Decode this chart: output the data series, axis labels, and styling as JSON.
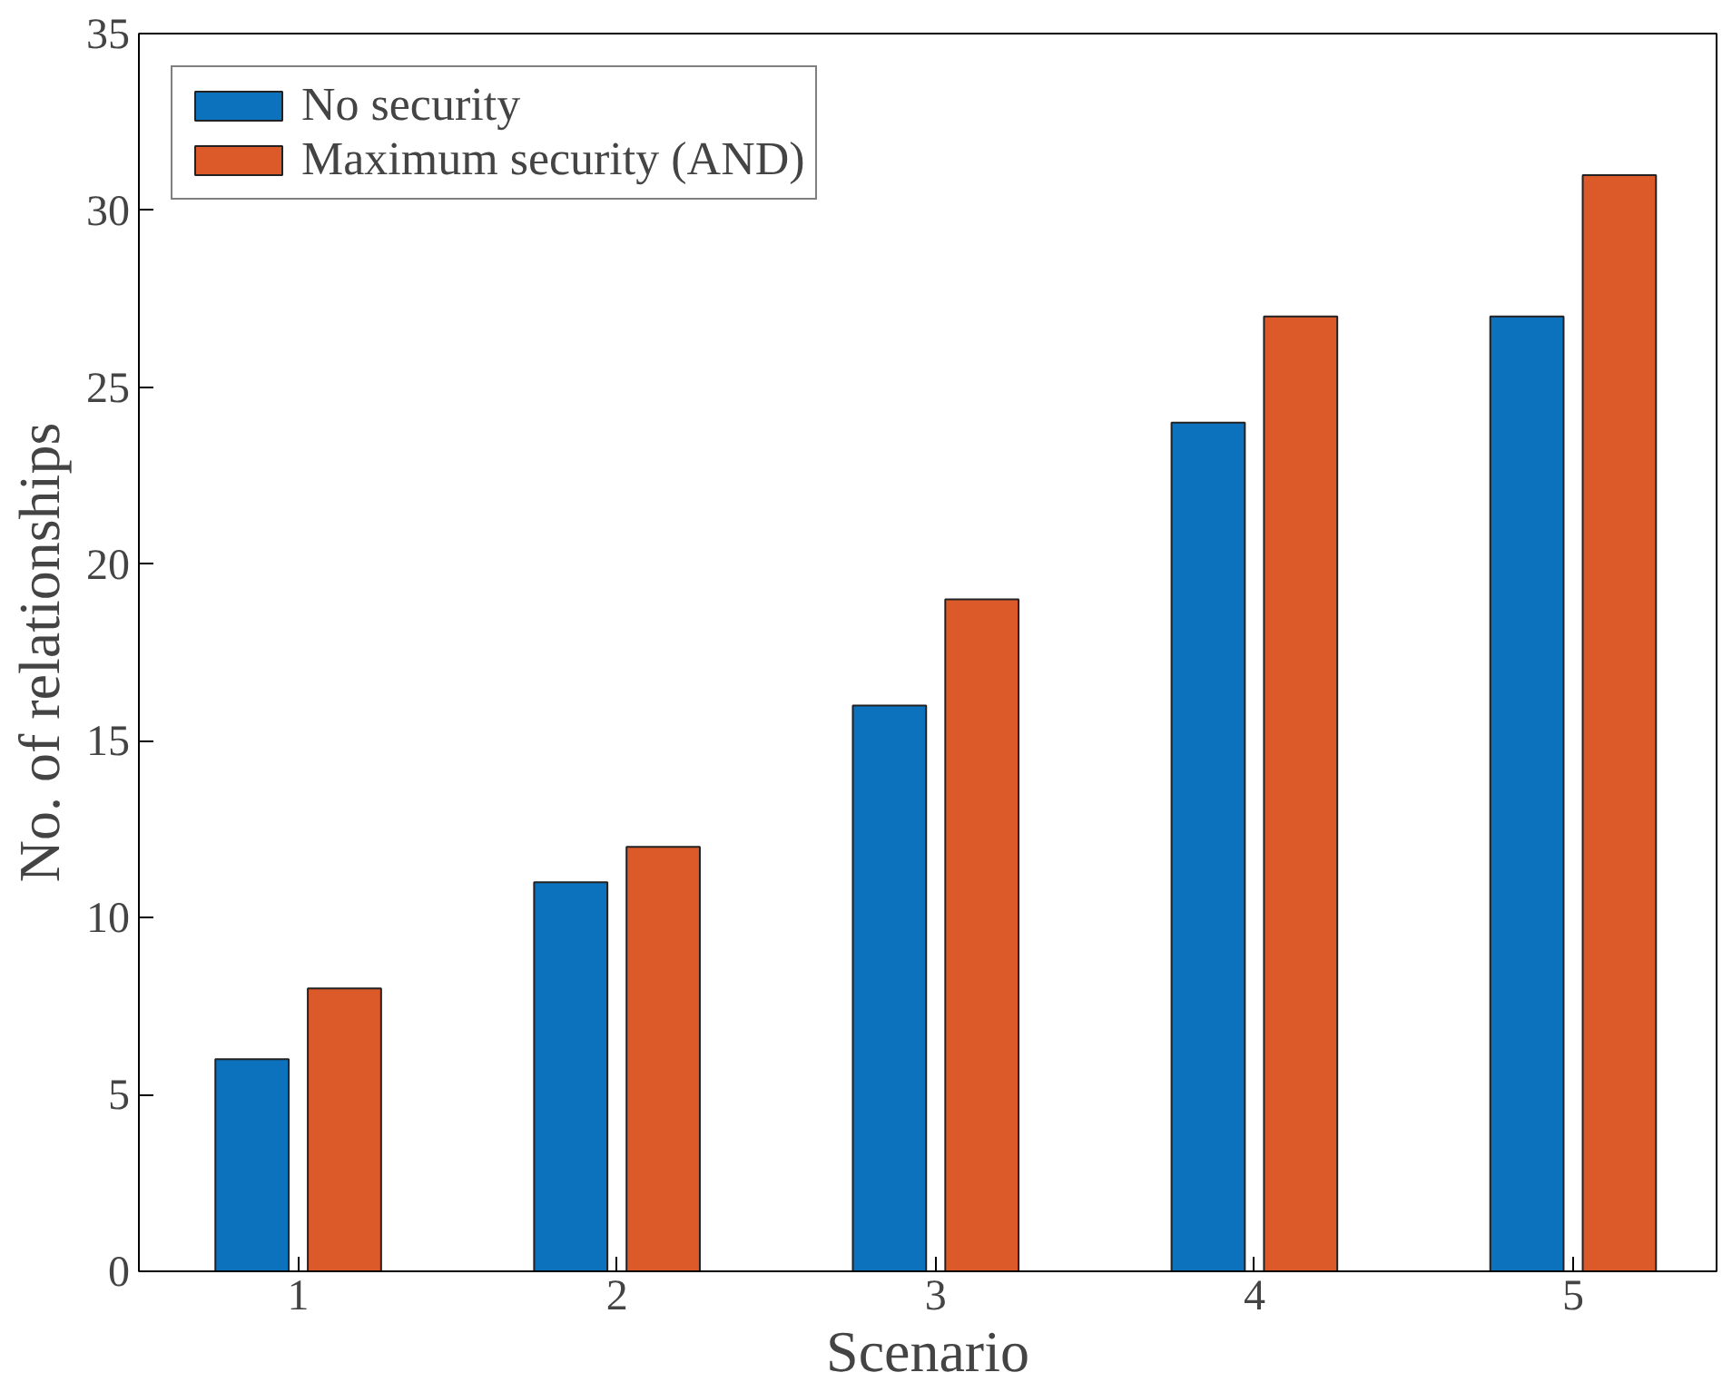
{
  "chart_data": {
    "type": "bar",
    "xlabel": "Scenario",
    "ylabel": "No. of relationships",
    "categories": [
      "1",
      "2",
      "3",
      "4",
      "5"
    ],
    "series": [
      {
        "name": "No security",
        "color": "#0c72bd",
        "values": [
          6,
          11,
          16,
          24,
          27
        ]
      },
      {
        "name": "Maximum security (AND)",
        "color": "#dc5a2a",
        "values": [
          8,
          12,
          19,
          27,
          31
        ]
      }
    ],
    "ylim": [
      0,
      35
    ],
    "yticks": [
      0,
      5,
      10,
      15,
      20,
      25,
      30,
      35
    ],
    "grid": false,
    "legend": "top left"
  }
}
